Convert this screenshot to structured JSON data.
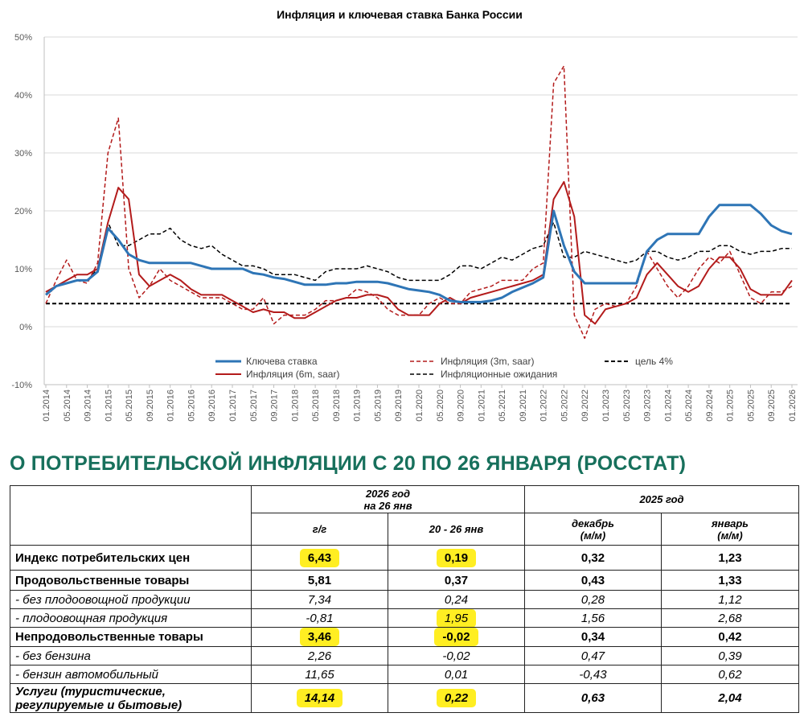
{
  "chart_data": {
    "type": "line",
    "title": "Инфляция и ключевая ставка Банка России",
    "categories": [
      "01.2014",
      null,
      "05.2014",
      null,
      "09.2014",
      null,
      "01.2015",
      null,
      "05.2015",
      null,
      "09.2015",
      null,
      "01.2016",
      null,
      "05.2016",
      null,
      "09.2016",
      null,
      "01.2017",
      null,
      "05.2017",
      null,
      "09.2017",
      null,
      "01.2018",
      null,
      "05.2018",
      null,
      "09.2018",
      null,
      "01.2019",
      null,
      "05.2019",
      null,
      "09.2019",
      null,
      "01.2020",
      null,
      "05.2020",
      null,
      "09.2020",
      null,
      "01.2021",
      null,
      "05.2021",
      null,
      "09.2021",
      null,
      "01.2022",
      null,
      "05.2022",
      null,
      "09.2022",
      null,
      "01.2023",
      null,
      "05.2023",
      null,
      "09.2023",
      null,
      "01.2024",
      null,
      "05.2024",
      null,
      "09.2024",
      null,
      "01.2025",
      null,
      "05.2025",
      null,
      "09.2025",
      null,
      "01.2026"
    ],
    "ylim": [
      -10,
      50
    ],
    "yticks": [
      {
        "value": -10,
        "label": "-10%"
      },
      {
        "value": 0,
        "label": "0%"
      },
      {
        "value": 10,
        "label": "10%"
      },
      {
        "value": 20,
        "label": "20%"
      },
      {
        "value": 30,
        "label": "30%"
      },
      {
        "value": 40,
        "label": "40%"
      },
      {
        "value": 50,
        "label": "50%"
      }
    ],
    "grid": true,
    "series": [
      {
        "name": "Ключева ставка",
        "color": "#2e75b6",
        "dash": "solid",
        "width": 3,
        "values": [
          5.5,
          7,
          7.5,
          8,
          8,
          9.5,
          17,
          15,
          12.5,
          11.5,
          11,
          11,
          11,
          11,
          11,
          10.5,
          10,
          10,
          10,
          10,
          9.25,
          9,
          8.5,
          8.25,
          7.75,
          7.25,
          7.25,
          7.25,
          7.5,
          7.5,
          7.75,
          7.75,
          7.75,
          7.5,
          7,
          6.5,
          6.25,
          6,
          5.5,
          4.5,
          4.25,
          4.25,
          4.25,
          4.5,
          5,
          6,
          6.75,
          7.5,
          8.5,
          20,
          14,
          9.5,
          7.5,
          7.5,
          7.5,
          7.5,
          7.5,
          7.5,
          13,
          15,
          16,
          16,
          16,
          16,
          19,
          21,
          21,
          21,
          21,
          19.5,
          17.5,
          16.5,
          16
        ]
      },
      {
        "name": "Инфляция (3m, saar)",
        "color": "#b31b1b",
        "dash": "dashed",
        "width": 1.5,
        "values": [
          4,
          8,
          11.5,
          8,
          7.5,
          11,
          30,
          36,
          10,
          5,
          7,
          10,
          8,
          7,
          6,
          5,
          5,
          5,
          4,
          3,
          3,
          5,
          0.5,
          2,
          2,
          2,
          3,
          4.5,
          4.5,
          5,
          6.5,
          6,
          5,
          3,
          2,
          2,
          2,
          4,
          5,
          4,
          4,
          6,
          6.5,
          7,
          8,
          8,
          8,
          10,
          11,
          42,
          45,
          2,
          -2,
          3,
          4,
          3.5,
          4,
          7,
          13,
          10,
          7,
          5,
          7,
          10,
          12,
          11,
          13,
          9,
          5,
          4,
          6,
          6,
          7
        ]
      },
      {
        "name": "цель 4%",
        "color": "#000000",
        "dash": "dashed",
        "width": 2,
        "values": [
          4,
          4,
          4,
          4,
          4,
          4,
          4,
          4,
          4,
          4,
          4,
          4,
          4,
          4,
          4,
          4,
          4,
          4,
          4,
          4,
          4,
          4,
          4,
          4,
          4,
          4,
          4,
          4,
          4,
          4,
          4,
          4,
          4,
          4,
          4,
          4,
          4,
          4,
          4,
          4,
          4,
          4,
          4,
          4,
          4,
          4,
          4,
          4,
          4,
          4,
          4,
          4,
          4,
          4,
          4,
          4,
          4,
          4,
          4,
          4,
          4,
          4,
          4,
          4,
          4,
          4,
          4,
          4,
          4,
          4,
          4,
          4,
          4
        ]
      },
      {
        "name": "Инфляция (6m, saar)",
        "color": "#b31b1b",
        "dash": "solid",
        "width": 2,
        "values": [
          6,
          7,
          8,
          9,
          9,
          10,
          18,
          24,
          22,
          9,
          7,
          8,
          9,
          8,
          6.5,
          5.5,
          5.5,
          5.5,
          4.5,
          3.5,
          2.5,
          3,
          2.5,
          2.5,
          1.5,
          1.5,
          2.5,
          3.5,
          4.5,
          5,
          5,
          5.5,
          5.5,
          5,
          3,
          2,
          2,
          2,
          4,
          5,
          4,
          5,
          5.5,
          6,
          6.5,
          7,
          7.5,
          8,
          9,
          22,
          25,
          19,
          2,
          0.5,
          3,
          3.5,
          4,
          5,
          9,
          11,
          9,
          7,
          6,
          7,
          10,
          12,
          12,
          10,
          6.5,
          5.5,
          5.5,
          5.5,
          8
        ]
      },
      {
        "name": "Инфляционные ожидания",
        "color": "#000000",
        "dash": "dashed",
        "width": 1.5,
        "values": [
          6,
          7,
          7.5,
          8,
          8,
          10,
          18,
          14,
          14,
          15,
          16,
          16,
          17,
          15,
          14,
          13.5,
          14,
          12.5,
          11.5,
          10.5,
          10.5,
          10,
          9,
          9,
          9,
          8.5,
          8,
          9.5,
          10,
          10,
          10,
          10.5,
          10,
          9.5,
          8.5,
          8,
          8,
          8,
          8,
          9,
          10.5,
          10.5,
          10,
          11,
          12,
          11.5,
          12.5,
          13.5,
          14,
          18,
          12,
          12,
          13,
          12.5,
          12,
          11.5,
          11,
          11.5,
          13,
          13,
          12,
          11.5,
          12,
          13,
          13,
          14,
          14,
          13,
          12.5,
          13,
          13,
          13.5,
          13.5
        ]
      }
    ]
  },
  "heading": "О ПОТРЕБИТЕЛЬСКОЙ ИНФЛЯЦИИ С 20 ПО 26 ЯНВАРЯ (РОССТАТ)",
  "table": {
    "header": {
      "group1": [
        "2026 год",
        "на 26 янв"
      ],
      "group2": "2025 год",
      "columns": [
        "г/г",
        "20 - 26 янв",
        [
          "декабрь",
          "(м/м)"
        ],
        [
          "январь",
          "(м/м)"
        ]
      ]
    },
    "rows": [
      [
        "Индекс потребительских цен",
        {
          "text": "6,43",
          "highlight": true
        },
        {
          "text": "0,19",
          "highlight": true
        },
        "0,32",
        "1,23"
      ],
      [
        "Продовольственные товары",
        "5,81",
        "0,37",
        "0,43",
        "1,33"
      ],
      [
        "- без плодоовощной продукции",
        "7,34",
        "0,24",
        "0,28",
        "1,12"
      ],
      [
        "- плодоовощная продукция",
        "-0,81",
        {
          "text": "1,95",
          "highlight": true
        },
        "1,56",
        "2,68"
      ],
      [
        "Непродовольственные товары",
        {
          "text": "3,46",
          "highlight": true
        },
        {
          "text": "-0,02",
          "highlight": true
        },
        "0,34",
        "0,42"
      ],
      [
        "- без бензина",
        "2,26",
        "-0,02",
        "0,47",
        "0,39"
      ],
      [
        "- бензин автомобильный",
        "11,65",
        "0,01",
        "-0,43",
        "0,62"
      ],
      [
        "Услуги (туристические, регулируемые и бытовые)",
        {
          "text": "14,14",
          "highlight": true
        },
        {
          "text": "0,22",
          "highlight": true
        },
        "0,63",
        "2,04"
      ]
    ]
  }
}
